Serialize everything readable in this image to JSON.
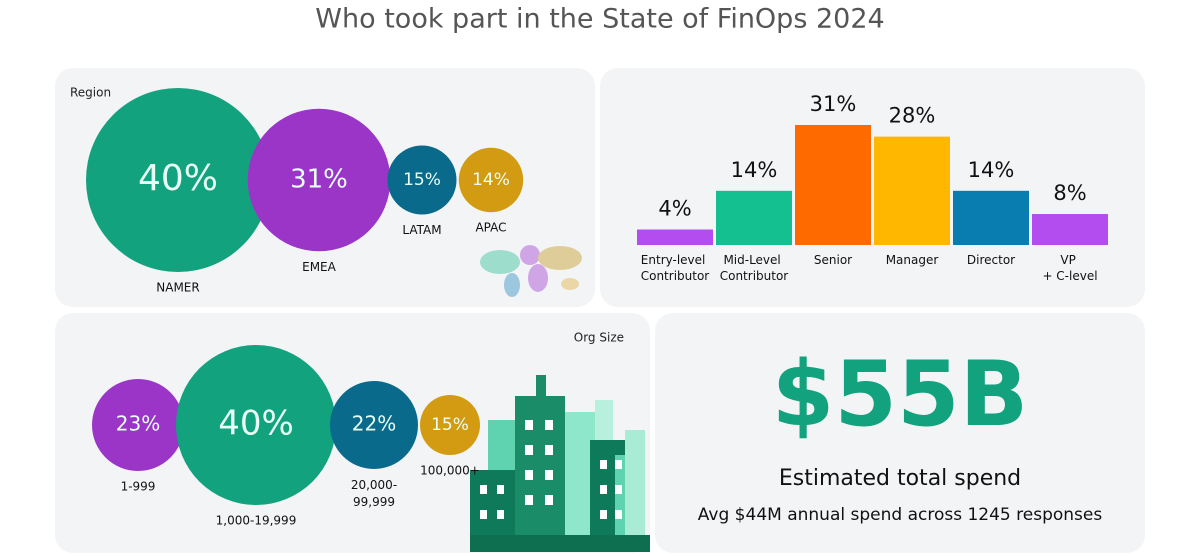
{
  "title": "Who took part in the State of FinOps 2024",
  "chart_data": [
    {
      "type": "bubble",
      "title": "Region",
      "categories": [
        "NAMER",
        "EMEA",
        "LATAM",
        "APAC"
      ],
      "values": [
        40,
        31,
        15,
        14
      ],
      "value_labels": [
        "40%",
        "31%",
        "15%",
        "14%"
      ],
      "colors": [
        "#12a27d",
        "#9b35c8",
        "#0a6a8c",
        "#d29b12"
      ]
    },
    {
      "type": "bar",
      "categories": [
        "Entry-level Contributor",
        "Mid-Level Contributor",
        "Senior",
        "Manager",
        "Director",
        "VP + C-level"
      ],
      "values": [
        4,
        14,
        31,
        28,
        14,
        8
      ],
      "value_labels": [
        "4%",
        "14%",
        "31%",
        "28%",
        "14%",
        "8%"
      ],
      "colors": [
        "#b44df0",
        "#14c08f",
        "#ff6a00",
        "#ffb700",
        "#0a7db0",
        "#b44df0"
      ]
    },
    {
      "type": "bubble",
      "title": "Org Size",
      "categories": [
        "1-999",
        "1,000-19,999",
        "20,000-99,999",
        "100,000+"
      ],
      "values": [
        23,
        40,
        22,
        15
      ],
      "value_labels": [
        "23%",
        "40%",
        "22%",
        "15%"
      ],
      "colors": [
        "#9b35c8",
        "#12a27d",
        "#0a6a8c",
        "#d29b12"
      ]
    }
  ],
  "stat": {
    "value": "$55B",
    "label": "Estimated total spend",
    "note": "Avg $44M annual spend across 1245 responses"
  }
}
